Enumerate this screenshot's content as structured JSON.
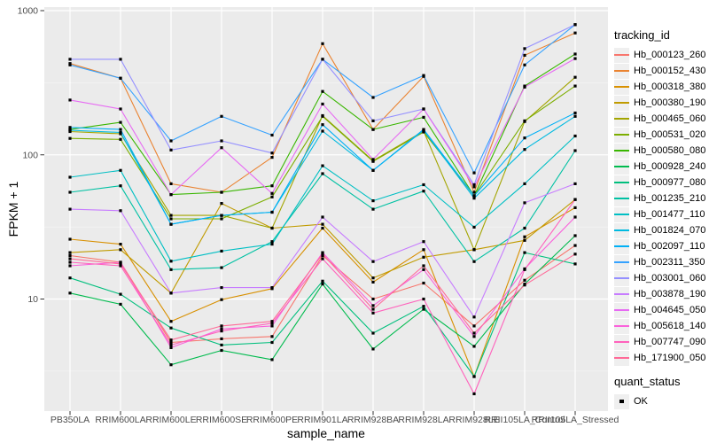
{
  "figure": {
    "y_axis_title": "FPKM + 1",
    "x_axis_title": "sample_name",
    "colors": {
      "panel_bg": "#EBEBEB",
      "grid_major": "#FFFFFF",
      "grid_minor": "#F7F7F7",
      "tick_mark": "#333333",
      "tick_text": "#4D4D4D",
      "point": "#000000"
    }
  },
  "legend": {
    "tracking_title": "tracking_id",
    "quant_title": "quant_status",
    "quant_items": [
      "OK"
    ]
  },
  "chart_data": {
    "type": "line",
    "title": "",
    "xlabel": "sample_name",
    "ylabel": "FPKM + 1",
    "y_scale": "log10",
    "ylim": [
      1.7,
      1060
    ],
    "y_major_ticks": [
      1000,
      100,
      10
    ],
    "y_minor_ticks": [
      316.23,
      31.623,
      3.1623
    ],
    "grid": true,
    "legend_position": "right",
    "point_shape": "square",
    "categories": [
      "PB350LA",
      "RRIM600LA",
      "RRIM600LE",
      "RRIM600SE",
      "RRIM600PE",
      "RRIM901LA",
      "RRIM928BA",
      "RRIM928LA",
      "RRIM928LE",
      "RRII105LA_Control",
      "RRII105LA_Stressed"
    ],
    "series": [
      {
        "name": "Hb_000123_260",
        "color": "#F8766D",
        "values": [
          20,
          18,
          5.0,
          5.3,
          5.5,
          20,
          10,
          12.9,
          6.5,
          13.5,
          23.5
        ]
      },
      {
        "name": "Hb_000152_430",
        "color": "#EA8331",
        "values": [
          430,
          340,
          63,
          55,
          96,
          590,
          150,
          350,
          55,
          490,
          700
        ]
      },
      {
        "name": "Hb_000318_380",
        "color": "#D89000",
        "values": [
          26,
          24,
          7.0,
          9.9,
          11.8,
          31,
          13.1,
          22,
          2.9,
          27,
          43
        ]
      },
      {
        "name": "Hb_000380_190",
        "color": "#C09B00",
        "values": [
          21,
          22,
          11,
          46,
          31,
          33,
          14,
          19.5,
          22,
          25.5,
          49
        ]
      },
      {
        "name": "Hb_000465_060",
        "color": "#A3A500",
        "values": [
          145,
          140,
          38,
          38,
          31,
          187,
          91,
          146,
          22,
          170,
          345
        ]
      },
      {
        "name": "Hb_000531_020",
        "color": "#7CAE00",
        "values": [
          130,
          128,
          36,
          36,
          51,
          185,
          90,
          144,
          52,
          172,
          300
        ]
      },
      {
        "name": "Hb_000580_080",
        "color": "#39B600",
        "values": [
          150,
          168,
          53,
          55,
          61,
          275,
          150,
          182,
          52,
          300,
          500
        ]
      },
      {
        "name": "Hb_000928_240",
        "color": "#00BB4E",
        "values": [
          11,
          9.2,
          3.5,
          4.4,
          3.8,
          12.7,
          4.5,
          8.5,
          4.7,
          12.7,
          27.5
        ]
      },
      {
        "name": "Hb_000977_080",
        "color": "#00BF7D",
        "values": [
          14,
          10.8,
          6.3,
          4.8,
          5.0,
          13.3,
          5.8,
          8.9,
          2.9,
          21,
          17.5
        ]
      },
      {
        "name": "Hb_001235_210",
        "color": "#00C1A3",
        "values": [
          55,
          61,
          16,
          16.5,
          25,
          74,
          42,
          56,
          18.2,
          31,
          107
        ]
      },
      {
        "name": "Hb_001477_110",
        "color": "#00BFC4",
        "values": [
          70,
          78,
          18.3,
          21.5,
          24,
          84,
          48,
          62,
          31.5,
          63,
          135
        ]
      },
      {
        "name": "Hb_001824_070",
        "color": "#00BAE0",
        "values": [
          148,
          143,
          33,
          38,
          40,
          146,
          78,
          148,
          50,
          109,
          185
        ]
      },
      {
        "name": "Hb_002097_110",
        "color": "#00B0F6",
        "values": [
          155,
          150,
          33,
          38,
          40,
          162,
          78,
          150,
          52,
          131,
          195
        ]
      },
      {
        "name": "Hb_002311_350",
        "color": "#35A2FF",
        "values": [
          420,
          340,
          125,
          185,
          137,
          460,
          250,
          355,
          75,
          420,
          800
        ]
      },
      {
        "name": "Hb_003001_060",
        "color": "#9590FF",
        "values": [
          460,
          460,
          108,
          125,
          103,
          460,
          172,
          208,
          62,
          545,
          800
        ]
      },
      {
        "name": "Hb_003878_190",
        "color": "#C77CFF",
        "values": [
          42,
          41,
          11,
          12,
          12,
          37,
          18.2,
          25,
          7.5,
          46.5,
          63
        ]
      },
      {
        "name": "Hb_004645_050",
        "color": "#E76BF3",
        "values": [
          240,
          208,
          53,
          112,
          54,
          225,
          93,
          208,
          60,
          295,
          465
        ]
      },
      {
        "name": "Hb_005618_140",
        "color": "#FA62DB",
        "values": [
          17,
          18,
          4.6,
          6.2,
          6.5,
          21,
          9,
          16,
          5.5,
          16.2,
          37
        ]
      },
      {
        "name": "Hb_007747_090",
        "color": "#FF62BC",
        "values": [
          18,
          17,
          4.8,
          6.0,
          6.8,
          19,
          8,
          10,
          2.2,
          16,
          49
        ]
      },
      {
        "name": "Hb_171900_050",
        "color": "#FF6A98",
        "values": [
          19,
          17.5,
          5.2,
          6.5,
          7.0,
          20.5,
          8.5,
          17,
          5.8,
          12.5,
          20.5
        ]
      }
    ]
  }
}
